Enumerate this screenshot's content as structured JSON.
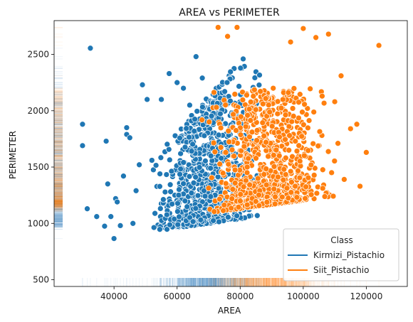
{
  "chart_data": {
    "type": "scatter",
    "title": "AREA vs PERIMETER",
    "xlabel": "AREA",
    "ylabel": "PERIMETER",
    "xlim": [
      21000,
      133000
    ],
    "ylim": [
      440,
      2800
    ],
    "xticks": [
      40000,
      60000,
      80000,
      100000,
      120000
    ],
    "yticks": [
      500,
      1000,
      1500,
      2000,
      2500
    ],
    "grid": false,
    "legend": {
      "title": "Class",
      "placement": "lower right",
      "entries": [
        "Kirmizi_Pistachio",
        "Siit_Pistachio"
      ]
    },
    "rug": true,
    "series": [
      {
        "name": "Kirmizi_Pistachio",
        "color": "#1f77b4",
        "outliers": [
          [
            30000,
            1880
          ],
          [
            30000,
            1690
          ],
          [
            32500,
            2555
          ],
          [
            31500,
            1130
          ],
          [
            34500,
            1060
          ],
          [
            37000,
            975
          ],
          [
            37500,
            1730
          ],
          [
            38000,
            1350
          ],
          [
            39000,
            1060
          ],
          [
            40000,
            865
          ],
          [
            40500,
            1220
          ],
          [
            41000,
            1190
          ],
          [
            42000,
            980
          ],
          [
            43000,
            1420
          ],
          [
            44000,
            1850
          ],
          [
            44000,
            1790
          ],
          [
            45000,
            1760
          ],
          [
            46000,
            1000
          ],
          [
            47000,
            1290
          ],
          [
            48000,
            1520
          ],
          [
            49000,
            2230
          ],
          [
            50500,
            2100
          ],
          [
            52000,
            1560
          ],
          [
            55000,
            2100
          ],
          [
            57500,
            2330
          ],
          [
            60000,
            2250
          ],
          [
            62000,
            2200
          ],
          [
            64000,
            2050
          ],
          [
            66000,
            2480
          ],
          [
            68000,
            2290
          ]
        ],
        "bulk": {
          "count": 820,
          "area_range": [
            50000,
            90000
          ],
          "perimeter_at_min_area": [
            920,
            1500
          ],
          "perimeter_at_max_area": [
            1080,
            2760
          ]
        }
      },
      {
        "name": "Siit_Pistachio",
        "color": "#ff7f0e",
        "outliers": [
          [
            108000,
            2680
          ],
          [
            112000,
            2310
          ],
          [
            115000,
            1840
          ],
          [
            117000,
            1880
          ],
          [
            118000,
            1330
          ],
          [
            120000,
            1630
          ],
          [
            124000,
            2580
          ],
          [
            111000,
            1710
          ],
          [
            109000,
            1450
          ],
          [
            113000,
            1390
          ],
          [
            104000,
            2650
          ],
          [
            100000,
            2730
          ],
          [
            106000,
            2130
          ],
          [
            110000,
            2080
          ],
          [
            96000,
            2610
          ],
          [
            73000,
            2740
          ],
          [
            79000,
            2740
          ],
          [
            76000,
            2660
          ]
        ],
        "bulk": {
          "count": 900,
          "area_range": [
            66000,
            112000
          ],
          "perimeter_at_min_area": [
            1080,
            2200
          ],
          "perimeter_at_max_area": [
            1250,
            2200
          ]
        }
      }
    ]
  }
}
